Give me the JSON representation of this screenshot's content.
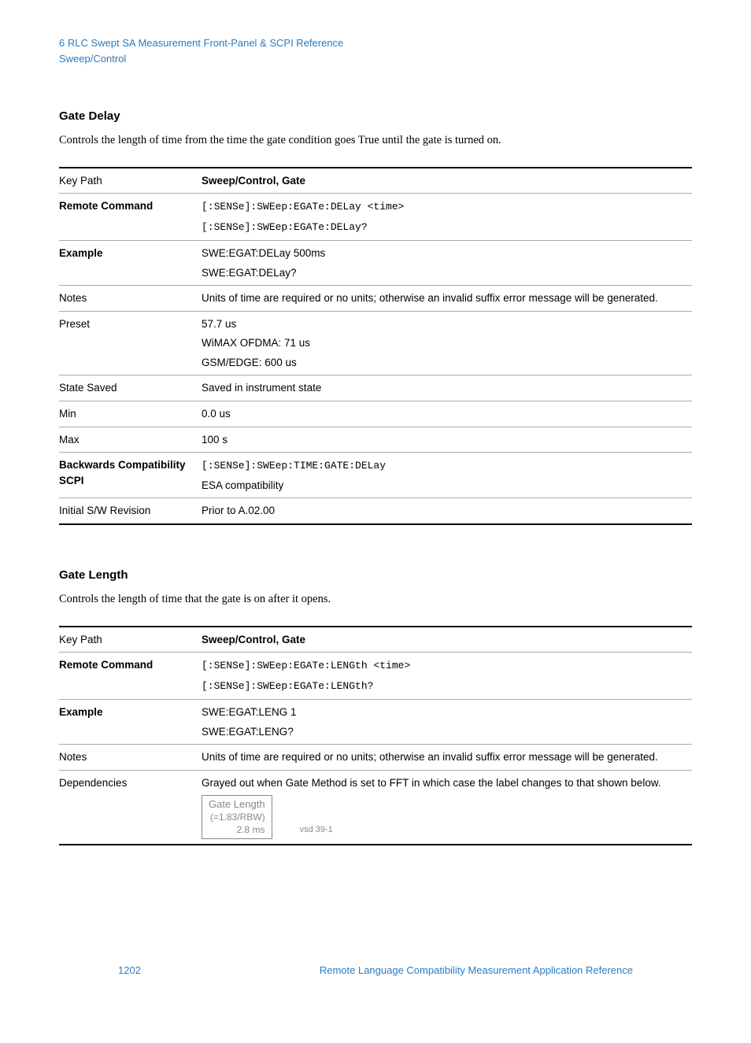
{
  "header": {
    "chapter_line": "6  RLC Swept SA Measurement Front-Panel & SCPI Reference",
    "breadcrumb": "Sweep/Control"
  },
  "sections": [
    {
      "title": "Gate Delay",
      "description": "Controls the length of time from the time the gate condition goes True until the gate is turned on.",
      "rows": [
        {
          "label": "Key Path",
          "label_bold": false,
          "lines": [
            {
              "text": "Sweep/Control, Gate",
              "mono": false,
              "bold": true
            }
          ]
        },
        {
          "label": "Remote Command",
          "label_bold": true,
          "lines": [
            {
              "text": "[:SENSe]:SWEep:EGATe:DELay <time>",
              "mono": true
            },
            {
              "text": "[:SENSe]:SWEep:EGATe:DELay?",
              "mono": true
            }
          ]
        },
        {
          "label": "Example",
          "label_bold": true,
          "lines": [
            {
              "text": "SWE:EGAT:DELay 500ms",
              "mono": false
            },
            {
              "text": "SWE:EGAT:DELay?",
              "mono": false
            }
          ]
        },
        {
          "label": "Notes",
          "label_bold": false,
          "lines": [
            {
              "text": "Units of time are required or no units; otherwise an invalid suffix error message will be generated.",
              "mono": false
            }
          ]
        },
        {
          "label": "Preset",
          "label_bold": false,
          "lines": [
            {
              "text": "57.7 us",
              "mono": false
            },
            {
              "text": "WiMAX OFDMA: 71 us",
              "mono": false
            },
            {
              "text": "GSM/EDGE: 600 us",
              "mono": false
            }
          ]
        },
        {
          "label": "State Saved",
          "label_bold": false,
          "lines": [
            {
              "text": "Saved in instrument state",
              "mono": false
            }
          ]
        },
        {
          "label": "Min",
          "label_bold": false,
          "lines": [
            {
              "text": "0.0 us",
              "mono": false
            }
          ]
        },
        {
          "label": "Max",
          "label_bold": false,
          "lines": [
            {
              "text": "100 s",
              "mono": false
            }
          ]
        },
        {
          "label": "Backwards Compatibility SCPI",
          "label_bold": true,
          "lines": [
            {
              "text": "[:SENSe]:SWEep:TIME:GATE:DELay",
              "mono": true
            },
            {
              "text": "ESA compatibility",
              "mono": false
            }
          ]
        },
        {
          "label": "Initial S/W Revision",
          "label_bold": false,
          "lines": [
            {
              "text": "Prior to A.02.00",
              "mono": false
            }
          ]
        }
      ]
    },
    {
      "title": "Gate Length",
      "description": "Controls the length of time that the gate is on after it opens.",
      "rows": [
        {
          "label": "Key Path",
          "label_bold": false,
          "lines": [
            {
              "text": "Sweep/Control, Gate",
              "mono": false,
              "bold": true
            }
          ]
        },
        {
          "label": "Remote Command",
          "label_bold": true,
          "lines": [
            {
              "text": "[:SENSe]:SWEep:EGATe:LENGth <time>",
              "mono": true
            },
            {
              "text": "[:SENSe]:SWEep:EGATe:LENGth?",
              "mono": true
            }
          ]
        },
        {
          "label": "Example",
          "label_bold": true,
          "lines": [
            {
              "text": "SWE:EGAT:LENG 1",
              "mono": false
            },
            {
              "text": "SWE:EGAT:LENG?",
              "mono": false
            }
          ]
        },
        {
          "label": "Notes",
          "label_bold": false,
          "lines": [
            {
              "text": "Units of time are required or no units; otherwise an invalid suffix error message will be generated.",
              "mono": false
            }
          ]
        },
        {
          "label": "Dependencies",
          "label_bold": false,
          "lines": [
            {
              "text": "Grayed out when Gate Method is set to FFT in which case the label changes to that shown below.",
              "mono": false
            }
          ],
          "key_box": {
            "title": "Gate Length",
            "sub1": "(=1.83/RBW)",
            "sub2": "2.8 ms",
            "vsd": "vsd 39-1"
          }
        }
      ]
    }
  ],
  "footer": {
    "page": "1202",
    "doc": "Remote Language Compatibility Measurement Application Reference"
  }
}
